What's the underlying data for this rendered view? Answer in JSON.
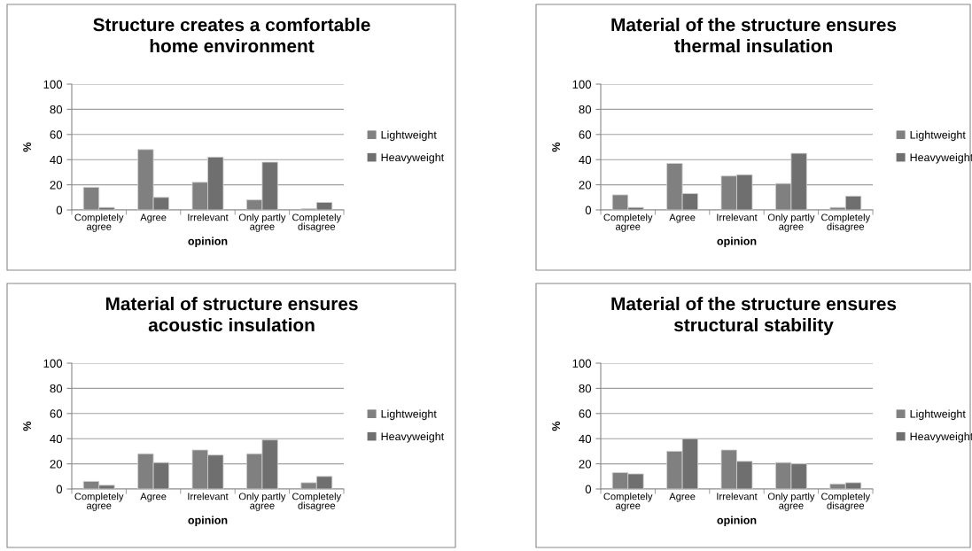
{
  "chart_data": [
    {
      "type": "bar",
      "title": "Structure creates a comfortable\nhome environment",
      "xlabel": "opinion",
      "ylabel": "%",
      "categories": [
        "Completely\nagree",
        "Agree",
        "Irrelevant",
        "Only partly\nagree",
        "Completely\ndisagree"
      ],
      "ylim": [
        0,
        100
      ],
      "yticks": [
        0,
        20,
        40,
        60,
        80,
        100
      ],
      "grid": "y",
      "legend": "right",
      "series": [
        {
          "name": "Lightweight",
          "color": "#808080",
          "values": [
            18,
            48,
            22,
            8,
            1
          ]
        },
        {
          "name": "Heavyweight",
          "color": "#6f6f6f",
          "values": [
            2,
            10,
            42,
            38,
            6
          ]
        }
      ]
    },
    {
      "type": "bar",
      "title": "Material of the structure ensures\nthermal insulation",
      "xlabel": "opinion",
      "ylabel": "%",
      "categories": [
        "Completely\nagree",
        "Agree",
        "Irrelevant",
        "Only partly\nagree",
        "Completely\ndisagree"
      ],
      "ylim": [
        0,
        100
      ],
      "yticks": [
        0,
        20,
        40,
        60,
        80,
        100
      ],
      "grid": "y",
      "legend": "right",
      "series": [
        {
          "name": "Lightweight",
          "color": "#808080",
          "values": [
            12,
            37,
            27,
            21,
            2
          ]
        },
        {
          "name": "Heavyweight",
          "color": "#6f6f6f",
          "values": [
            2,
            13,
            28,
            45,
            11
          ]
        }
      ]
    },
    {
      "type": "bar",
      "title": "Material of structure ensures\nacoustic insulation",
      "xlabel": "opinion",
      "ylabel": "%",
      "categories": [
        "Completely\nagree",
        "Agree",
        "Irrelevant",
        "Only partly\nagree",
        "Completely\ndisagree"
      ],
      "ylim": [
        0,
        100
      ],
      "yticks": [
        0,
        20,
        40,
        60,
        80,
        100
      ],
      "grid": "y",
      "legend": "right",
      "series": [
        {
          "name": "Lightweight",
          "color": "#808080",
          "values": [
            6,
            28,
            31,
            28,
            5
          ]
        },
        {
          "name": "Heavyweight",
          "color": "#6f6f6f",
          "values": [
            3,
            21,
            27,
            39,
            10
          ]
        }
      ]
    },
    {
      "type": "bar",
      "title": "Material of the structure ensures\nstructural stability",
      "xlabel": "opinion",
      "ylabel": "%",
      "categories": [
        "Completely\nagree",
        "Agree",
        "Irrelevant",
        "Only partly\nagree",
        "Completely\ndisagree"
      ],
      "ylim": [
        0,
        100
      ],
      "yticks": [
        0,
        20,
        40,
        60,
        80,
        100
      ],
      "grid": "y",
      "legend": "right",
      "series": [
        {
          "name": "Lightweight",
          "color": "#808080",
          "values": [
            13,
            30,
            31,
            21,
            4
          ]
        },
        {
          "name": "Heavyweight",
          "color": "#6f6f6f",
          "values": [
            12,
            40,
            22,
            20,
            5
          ]
        }
      ]
    }
  ]
}
